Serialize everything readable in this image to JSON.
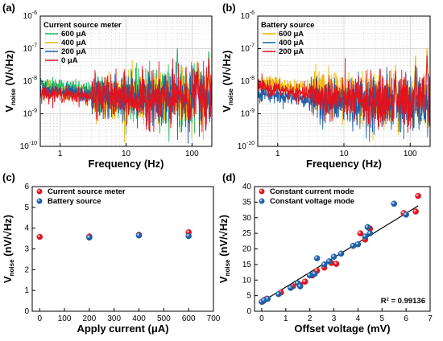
{
  "colors": {
    "green": "#1fbf5f",
    "yellow": "#f2b705",
    "blue": "#1a5fa8",
    "red": "#e0141e",
    "grid": "#c8c8c8",
    "fit": "#000000"
  },
  "chart_data": [
    {
      "panel": "(a)",
      "type": "line",
      "scale": "log-log",
      "xlabel": "Frequency (Hz)",
      "ylabel": "V_noise (V/√Hz)",
      "ylabel_main": "V",
      "ylabel_sub": "noise",
      "ylabel_rest": " (V/√Hz)",
      "xlim": [
        0.5,
        200
      ],
      "ylim": [
        1e-10,
        1e-06
      ],
      "xticks": [
        {
          "v": 1,
          "l": "1"
        },
        {
          "v": 10,
          "l": "10"
        },
        {
          "v": 100,
          "l": "100"
        }
      ],
      "yticks": [
        {
          "e": -10,
          "l": "-10"
        },
        {
          "e": -9,
          "l": "-9"
        },
        {
          "e": -8,
          "l": "-8"
        },
        {
          "e": -7,
          "l": "-7"
        },
        {
          "e": -6,
          "l": "-6"
        }
      ],
      "grid": true,
      "legend_title": "Current source meter",
      "legend_position": "top-left",
      "series": [
        {
          "name": "600 μA",
          "color": "green",
          "level": 3.5e-09,
          "low_f_level": 1e-08,
          "spikes": [
            [
              60,
              1e-07
            ],
            [
              120,
              3e-08
            ],
            [
              180,
              8e-08
            ]
          ]
        },
        {
          "name": "400 μA",
          "color": "yellow",
          "level": 3.2e-09,
          "low_f_level": 5e-09,
          "spikes": [
            [
              120,
              4e-08
            ],
            [
              180,
              2e-08
            ]
          ]
        },
        {
          "name": "200 μA",
          "color": "blue",
          "level": 3e-09,
          "low_f_level": 6e-09,
          "spikes": [
            [
              120,
              2e-08
            ]
          ]
        },
        {
          "name": "0  μA",
          "color": "red",
          "level": 2.8e-09,
          "low_f_level": 5e-09,
          "spikes": [
            [
              120,
              1.5e-08
            ],
            [
              180,
              5e-08
            ]
          ]
        }
      ]
    },
    {
      "panel": "(b)",
      "type": "line",
      "scale": "log-log",
      "xlabel": "Frequency (Hz)",
      "ylabel": "V_noise (V/√Hz)",
      "ylabel_main": "V",
      "ylabel_sub": "noise",
      "ylabel_rest": " (V/√Hz)",
      "xlim": [
        0.5,
        200
      ],
      "ylim": [
        1e-10,
        1e-06
      ],
      "xticks": [
        {
          "v": 1,
          "l": "1"
        },
        {
          "v": 10,
          "l": "10"
        },
        {
          "v": 100,
          "l": "100"
        }
      ],
      "yticks": [
        {
          "e": -10,
          "l": "-10"
        },
        {
          "e": -9,
          "l": "-9"
        },
        {
          "e": -8,
          "l": "-8"
        },
        {
          "e": -7,
          "l": "-7"
        },
        {
          "e": -6,
          "l": "-6"
        }
      ],
      "grid": true,
      "legend_title": "Battery source",
      "legend_position": "top-left",
      "series": [
        {
          "name": "600 μA",
          "color": "yellow",
          "level": 3e-09,
          "low_f_level": 1.2e-08,
          "spikes": [
            [
              60,
              3e-08
            ],
            [
              120,
              6e-08
            ],
            [
              180,
              1e-07
            ]
          ]
        },
        {
          "name": "400 μA",
          "color": "blue",
          "level": 2e-09,
          "low_f_level": 5e-09,
          "spikes": [
            [
              60,
              1.5e-08
            ]
          ]
        },
        {
          "name": "200 μA",
          "color": "red",
          "level": 2.5e-09,
          "low_f_level": 8e-09,
          "spikes": [
            [
              60,
              2e-08
            ],
            [
              120,
              3e-08
            ],
            [
              180,
              6e-08
            ]
          ]
        }
      ]
    },
    {
      "panel": "(c)",
      "type": "scatter",
      "xlabel": "Apply current (μA)",
      "ylabel": "V_noise (nV/√Hz)",
      "ylabel_main": "V",
      "ylabel_sub": "noise",
      "ylabel_rest": " (nV/√Hz)",
      "xlim": [
        -30,
        700
      ],
      "ylim": [
        0,
        6
      ],
      "xticks": [
        0,
        100,
        200,
        300,
        400,
        500,
        600,
        700
      ],
      "yticks": [
        0,
        1,
        2,
        3,
        4,
        5,
        6
      ],
      "grid": false,
      "legend_position": "top-left",
      "series": [
        {
          "name": "Current source meter",
          "color": "red",
          "x": [
            0,
            200,
            400,
            600
          ],
          "y": [
            3.58,
            3.6,
            3.68,
            3.8
          ]
        },
        {
          "name": "Battery source",
          "color": "blue",
          "x": [
            200,
            400,
            600
          ],
          "y": [
            3.55,
            3.65,
            3.62
          ]
        }
      ]
    },
    {
      "panel": "(d)",
      "type": "scatter",
      "xlabel": "Offset voltage (mV)",
      "ylabel": "V_noise (nV/√Hz)",
      "ylabel_main": "V",
      "ylabel_sub": "noise",
      "ylabel_rest": " (nV/√Hz)",
      "xlim": [
        -0.3,
        7
      ],
      "ylim": [
        0,
        40
      ],
      "xticks": [
        0,
        1,
        2,
        3,
        4,
        5,
        6,
        7
      ],
      "yticks": [
        0,
        5,
        10,
        15,
        20,
        25,
        30,
        35,
        40
      ],
      "grid": false,
      "legend_position": "top-left",
      "annotation": "R² = 0.99136",
      "fit_line": {
        "x": [
          0,
          6.5
        ],
        "y": [
          3.0,
          33.8
        ]
      },
      "series": [
        {
          "name": "Constant current mode",
          "color": "red",
          "x": [
            0.05,
            0.1,
            0.2,
            0.8,
            1.3,
            1.6,
            1.8,
            2.1,
            2.3,
            2.6,
            2.9,
            3.1,
            3.8,
            4.1,
            4.3,
            4.5,
            5.9,
            6.4,
            6.5
          ],
          "y": [
            3.2,
            3.6,
            4.0,
            6.0,
            8.0,
            8.5,
            9.5,
            11.5,
            13.0,
            14.0,
            15.5,
            15.2,
            21.0,
            25.0,
            23.0,
            26.5,
            31.5,
            32.0,
            37.0
          ]
        },
        {
          "name": "Constant voltage mode",
          "color": "blue",
          "x": [
            0.0,
            0.1,
            0.25,
            0.7,
            1.2,
            1.5,
            1.6,
            2.0,
            2.2,
            2.3,
            2.6,
            2.8,
            3.0,
            3.3,
            3.8,
            4.0,
            4.3,
            4.4,
            4.5,
            5.5,
            6.0
          ],
          "y": [
            3.0,
            3.5,
            4.0,
            5.5,
            7.5,
            9.0,
            8.0,
            11.5,
            12.0,
            17.0,
            15.0,
            16.0,
            17.5,
            18.5,
            21.0,
            21.5,
            24.0,
            27.0,
            25.0,
            34.5,
            31.0
          ]
        }
      ]
    }
  ]
}
